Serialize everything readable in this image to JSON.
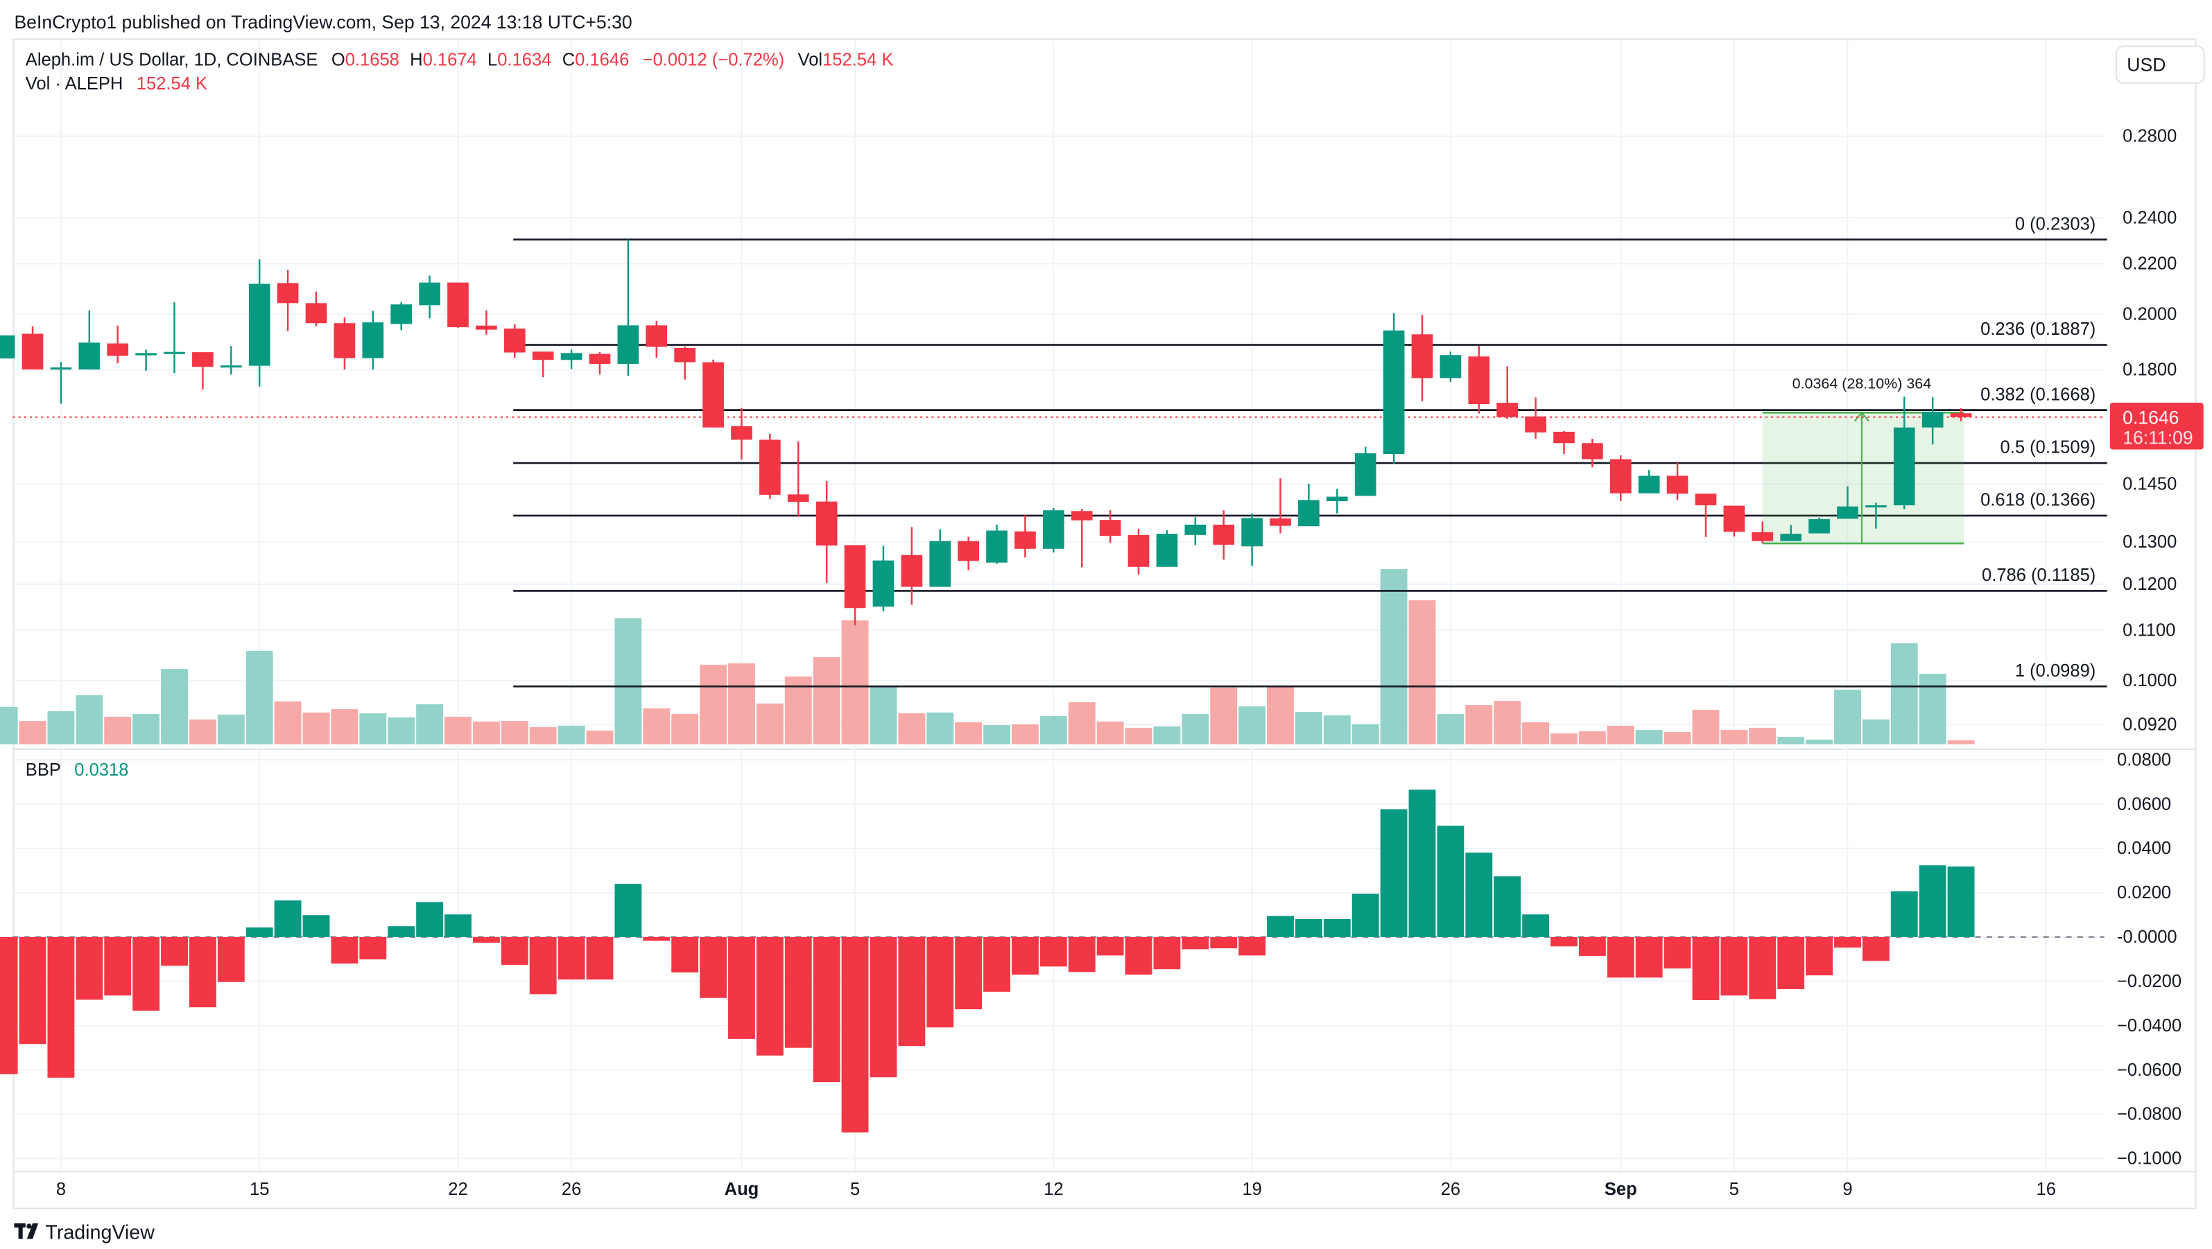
{
  "publisher_line": "BeInCrypto1 published on TradingView.com, Sep 13, 2024 13:18 UTC+5:30",
  "legend": {
    "symbol": "Aleph.im / US Dollar, 1D, COINBASE",
    "o_label": "O",
    "o": "0.1658",
    "h_label": "H",
    "h": "0.1674",
    "l_label": "L",
    "l": "0.1634",
    "c_label": "C",
    "c": "0.1646",
    "change": "−0.0012 (−0.72%)",
    "vol_label": "Vol",
    "vol": "152.54 K",
    "vol_study": "Vol · ALEPH",
    "vol_study_value": "152.54 K"
  },
  "currency_button": "USD",
  "last_price": {
    "value": "0.1646",
    "countdown": "16:11:09"
  },
  "measure": {
    "label": "0.0364 (28.10%) 364",
    "from": 0.1296,
    "to": 0.166
  },
  "bbp": {
    "label": "BBP",
    "value": "0.0318"
  },
  "brand": "TradingView",
  "colors": {
    "up": "#089981",
    "down": "#F23645",
    "vol_up": "#92d2c9",
    "vol_down": "#f7a9a7",
    "fib": "#131722",
    "measure": "#4caf50"
  },
  "chart_data": {
    "type": "candlestick",
    "price_scale": "log",
    "ylim": [
      0.0905,
      0.305
    ],
    "price_ticks": [
      "0.2800",
      "0.2400",
      "0.2200",
      "0.2000",
      "0.1800",
      "0.1450",
      "0.1300",
      "0.1200",
      "0.1100",
      "0.1000",
      "0.0920"
    ],
    "x_ticks": [
      {
        "label": "8",
        "day": 2
      },
      {
        "label": "15",
        "day": 9
      },
      {
        "label": "22",
        "day": 16
      },
      {
        "label": "26",
        "day": 20
      },
      {
        "label": "Aug",
        "day": 26
      },
      {
        "label": "5",
        "day": 30
      },
      {
        "label": "12",
        "day": 37
      },
      {
        "label": "19",
        "day": 44
      },
      {
        "label": "26",
        "day": 51
      },
      {
        "label": "Sep",
        "day": 57
      },
      {
        "label": "5",
        "day": 61
      },
      {
        "label": "9",
        "day": 65
      },
      {
        "label": "16",
        "day": 72
      }
    ],
    "ohlc": [
      [
        0.1839,
        0.1921,
        0.1839,
        0.1921
      ],
      [
        0.1927,
        0.1955,
        0.1801,
        0.1801
      ],
      [
        0.1805,
        0.1827,
        0.1688,
        0.1808
      ],
      [
        0.1801,
        0.2014,
        0.1801,
        0.1895
      ],
      [
        0.1892,
        0.1957,
        0.1822,
        0.1848
      ],
      [
        0.185,
        0.187,
        0.1797,
        0.1858
      ],
      [
        0.1858,
        0.2045,
        0.1789,
        0.1862
      ],
      [
        0.1861,
        0.1861,
        0.1734,
        0.181
      ],
      [
        0.1811,
        0.1883,
        0.1784,
        0.1815
      ],
      [
        0.1814,
        0.2218,
        0.1744,
        0.2118
      ],
      [
        0.2121,
        0.2174,
        0.1937,
        0.2042
      ],
      [
        0.2042,
        0.2087,
        0.1955,
        0.1966
      ],
      [
        0.1966,
        0.1987,
        0.1801,
        0.184
      ],
      [
        0.184,
        0.2012,
        0.1801,
        0.1969
      ],
      [
        0.1963,
        0.2045,
        0.194,
        0.2037
      ],
      [
        0.2034,
        0.2151,
        0.1984,
        0.2123
      ],
      [
        0.2123,
        0.2123,
        0.1949,
        0.1951
      ],
      [
        0.1957,
        0.2014,
        0.1924,
        0.1942
      ],
      [
        0.1946,
        0.1962,
        0.1841,
        0.186
      ],
      [
        0.1863,
        0.1863,
        0.1775,
        0.1834
      ],
      [
        0.1834,
        0.187,
        0.1803,
        0.1858
      ],
      [
        0.1855,
        0.1862,
        0.1784,
        0.182
      ],
      [
        0.182,
        0.2303,
        0.178,
        0.1958
      ],
      [
        0.1958,
        0.1975,
        0.1841,
        0.188
      ],
      [
        0.1876,
        0.1881,
        0.1767,
        0.1826
      ],
      [
        0.1826,
        0.1835,
        0.1614,
        0.1614
      ],
      [
        0.1618,
        0.1675,
        0.1519,
        0.1577
      ],
      [
        0.1577,
        0.1595,
        0.141,
        0.1421
      ],
      [
        0.1422,
        0.1572,
        0.1363,
        0.1402
      ],
      [
        0.1403,
        0.1458,
        0.1203,
        0.1291
      ],
      [
        0.1292,
        0.1292,
        0.111,
        0.1147
      ],
      [
        0.115,
        0.129,
        0.114,
        0.1255
      ],
      [
        0.1268,
        0.1337,
        0.1154,
        0.1194
      ],
      [
        0.1194,
        0.1331,
        0.1194,
        0.1302
      ],
      [
        0.1302,
        0.1313,
        0.1232,
        0.1254
      ],
      [
        0.125,
        0.1343,
        0.1247,
        0.1328
      ],
      [
        0.1326,
        0.1367,
        0.1262,
        0.1283
      ],
      [
        0.1283,
        0.1386,
        0.1274,
        0.138
      ],
      [
        0.1378,
        0.1384,
        0.1239,
        0.1354
      ],
      [
        0.1355,
        0.138,
        0.1298,
        0.1315
      ],
      [
        0.1317,
        0.1333,
        0.1222,
        0.124
      ],
      [
        0.124,
        0.1329,
        0.124,
        0.132
      ],
      [
        0.1317,
        0.1362,
        0.1292,
        0.1343
      ],
      [
        0.1343,
        0.138,
        0.1257,
        0.1293
      ],
      [
        0.1289,
        0.1372,
        0.1242,
        0.136
      ],
      [
        0.1359,
        0.1466,
        0.1321,
        0.134
      ],
      [
        0.1339,
        0.1451,
        0.1339,
        0.1407
      ],
      [
        0.1404,
        0.1437,
        0.1372,
        0.1416
      ],
      [
        0.1418,
        0.1556,
        0.1418,
        0.1537
      ],
      [
        0.1535,
        0.2004,
        0.1507,
        0.1939
      ],
      [
        0.1925,
        0.1997,
        0.1696,
        0.1772
      ],
      [
        0.1772,
        0.1863,
        0.1759,
        0.1851
      ],
      [
        0.1846,
        0.1884,
        0.1657,
        0.1687
      ],
      [
        0.1691,
        0.1812,
        0.164,
        0.1646
      ],
      [
        0.1648,
        0.1708,
        0.158,
        0.1599
      ],
      [
        0.1601,
        0.1603,
        0.1535,
        0.1567
      ],
      [
        0.1567,
        0.158,
        0.1497,
        0.152
      ],
      [
        0.152,
        0.1531,
        0.1404,
        0.1425
      ],
      [
        0.1425,
        0.1489,
        0.1425,
        0.1473
      ],
      [
        0.1473,
        0.151,
        0.1407,
        0.1424
      ],
      [
        0.1424,
        0.1424,
        0.1312,
        0.1393
      ],
      [
        0.1392,
        0.1392,
        0.1313,
        0.1325
      ],
      [
        0.1324,
        0.1351,
        0.1296,
        0.1302
      ],
      [
        0.1302,
        0.1342,
        0.1302,
        0.132
      ],
      [
        0.1321,
        0.1361,
        0.1321,
        0.1357
      ],
      [
        0.1358,
        0.1444,
        0.1358,
        0.139
      ],
      [
        0.1389,
        0.14,
        0.1333,
        0.1393
      ],
      [
        0.1393,
        0.1711,
        0.1383,
        0.1614
      ],
      [
        0.1614,
        0.1709,
        0.1563,
        0.1663
      ],
      [
        0.1658,
        0.1674,
        0.1634,
        0.1646
      ]
    ],
    "volume_k": [
      1449,
      909,
      1287,
      1908,
      1071,
      1179,
      2934,
      963,
      1152,
      3636,
      1665,
      1233,
      1368,
      1206,
      1044,
      1557,
      1071,
      882,
      909,
      666,
      720,
      531,
      4905,
      1395,
      1179,
      3096,
      3150,
      1584,
      2637,
      3393,
      4824,
      2286,
      1206,
      1233,
      855,
      747,
      774,
      1098,
      1638,
      882,
      639,
      693,
      1179,
      2205,
      1476,
      2232,
      1260,
      1125,
      774,
      6822,
      5607,
      1179,
      1530,
      1692,
      855,
      423,
      504,
      720,
      558,
      477,
      1341,
      558,
      639,
      288,
      180,
      2124,
      963,
      3933,
      2745,
      152.54
    ],
    "fib_levels": [
      {
        "level": "0",
        "price": 0.2303,
        "label": "0 (0.2303)"
      },
      {
        "level": "0.236",
        "price": 0.1887,
        "label": "0.236 (0.1887)"
      },
      {
        "level": "0.382",
        "price": 0.1668,
        "label": "0.382 (0.1668)"
      },
      {
        "level": "0.5",
        "price": 0.1509,
        "label": "0.5 (0.1509)"
      },
      {
        "level": "0.618",
        "price": 0.1366,
        "label": "0.618 (0.1366)"
      },
      {
        "level": "0.786",
        "price": 0.1185,
        "label": "0.786 (0.1185)"
      },
      {
        "level": "1",
        "price": 0.0989,
        "label": "1 (0.0989)"
      }
    ],
    "bbp_values": [
      -0.0619,
      -0.0483,
      -0.0635,
      -0.0283,
      -0.0264,
      -0.0333,
      -0.013,
      -0.0317,
      -0.0203,
      0.0043,
      0.0165,
      0.0099,
      -0.012,
      -0.0101,
      0.0049,
      0.0158,
      0.0102,
      -0.0026,
      -0.0126,
      -0.0258,
      -0.0192,
      -0.0192,
      0.024,
      -0.0017,
      -0.016,
      -0.0275,
      -0.046,
      -0.0535,
      -0.05,
      -0.0655,
      -0.0882,
      -0.0633,
      -0.0492,
      -0.0408,
      -0.0326,
      -0.0247,
      -0.017,
      -0.0133,
      -0.0158,
      -0.0083,
      -0.017,
      -0.0145,
      -0.0055,
      -0.0051,
      -0.0083,
      0.0095,
      0.0081,
      0.0081,
      0.0195,
      0.0577,
      0.0665,
      0.0502,
      0.0381,
      0.0274,
      0.0102,
      -0.0042,
      -0.0085,
      -0.0183,
      -0.0183,
      -0.0142,
      -0.0285,
      -0.0264,
      -0.028,
      -0.0235,
      -0.0173,
      -0.0048,
      -0.0108,
      0.0206,
      0.0324,
      0.0318
    ],
    "bbp_ticks": [
      "0.0800",
      "0.0600",
      "0.0400",
      "0.0200",
      "-0.0000",
      "−0.0200",
      "−0.0400",
      "−0.0600",
      "−0.0800",
      "−0.1000"
    ],
    "bbp_tick_values": [
      0.08,
      0.06,
      0.04,
      0.02,
      0,
      -0.02,
      -0.04,
      -0.06,
      -0.08,
      -0.1
    ]
  }
}
